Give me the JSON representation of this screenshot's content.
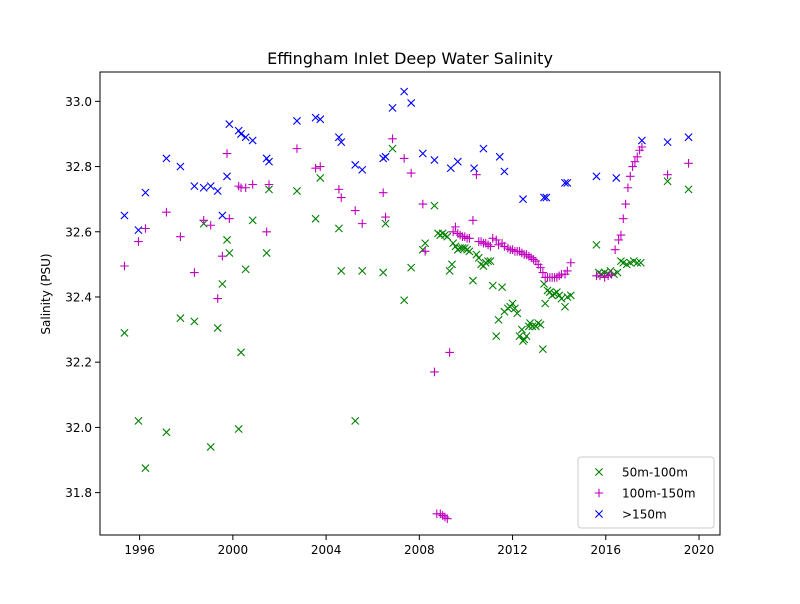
{
  "chart_data": {
    "type": "scatter",
    "title": "Effingham Inlet Deep Water Salinity",
    "xlabel": "",
    "ylabel": "Salinity (PSU)",
    "xlim": [
      1994.3,
      2020.9
    ],
    "ylim": [
      31.67,
      33.09
    ],
    "xticks": [
      1996,
      2000,
      2004,
      2008,
      2012,
      2016,
      2020
    ],
    "xtick_labels": [
      "1996",
      "2000",
      "2004",
      "2008",
      "2012",
      "2016",
      "2020"
    ],
    "yticks": [
      31.8,
      32.0,
      32.2,
      32.4,
      32.6,
      32.8,
      33.0
    ],
    "ytick_labels": [
      "31.8",
      "32.0",
      "32.2",
      "32.4",
      "32.6",
      "32.8",
      "33.0"
    ],
    "grid": false,
    "legend_position": "lower-right",
    "series": [
      {
        "name": "50m-100m",
        "marker": "x",
        "color": "#008000",
        "x": [
          1995.35,
          1995.95,
          1996.25,
          1997.15,
          1997.75,
          1998.35,
          1998.75,
          1999.05,
          1999.35,
          1999.55,
          1999.75,
          1999.85,
          2000.25,
          2000.35,
          2000.55,
          2000.85,
          2001.45,
          2001.55,
          2002.75,
          2003.55,
          2003.75,
          2004.55,
          2004.65,
          2005.25,
          2005.55,
          2006.45,
          2006.55,
          2006.85,
          2007.35,
          2007.65,
          2008.15,
          2008.25,
          2008.65,
          2008.8,
          2008.9,
          2009.0,
          2009.1,
          2009.2,
          2009.3,
          2009.4,
          2009.45,
          2009.55,
          2009.65,
          2009.75,
          2009.85,
          2009.95,
          2010.05,
          2010.15,
          2010.3,
          2010.45,
          2010.55,
          2010.65,
          2010.75,
          2010.85,
          2010.95,
          2011.05,
          2011.15,
          2011.3,
          2011.4,
          2011.55,
          2011.65,
          2011.8,
          2011.9,
          2012.0,
          2012.1,
          2012.2,
          2012.3,
          2012.4,
          2012.45,
          2012.5,
          2012.6,
          2012.7,
          2012.75,
          2012.85,
          2013.0,
          2013.1,
          2013.2,
          2013.3,
          2013.35,
          2013.4,
          2013.5,
          2013.6,
          2013.7,
          2013.8,
          2013.9,
          2014.0,
          2014.1,
          2014.25,
          2014.35,
          2014.5,
          2015.6,
          2015.7,
          2015.8,
          2015.95,
          2016.1,
          2016.2,
          2016.35,
          2016.5,
          2016.65,
          2016.75,
          2016.9,
          2017.05,
          2017.2,
          2017.35,
          2017.5,
          2018.65,
          2019.55
        ],
        "y": [
          32.29,
          32.02,
          31.875,
          31.985,
          32.335,
          32.325,
          32.625,
          31.94,
          32.305,
          32.44,
          32.575,
          32.535,
          31.995,
          32.23,
          32.485,
          32.635,
          32.535,
          32.73,
          32.725,
          32.64,
          32.765,
          32.61,
          32.48,
          32.02,
          32.48,
          32.475,
          32.625,
          32.855,
          32.39,
          32.49,
          32.545,
          32.565,
          32.68,
          32.595,
          32.59,
          32.595,
          32.59,
          32.585,
          32.48,
          32.5,
          32.565,
          32.555,
          32.545,
          32.55,
          32.55,
          32.55,
          32.545,
          32.54,
          32.45,
          32.53,
          32.52,
          32.5,
          32.495,
          32.505,
          32.51,
          32.51,
          32.435,
          32.28,
          32.33,
          32.43,
          32.355,
          32.365,
          32.37,
          32.38,
          32.365,
          32.35,
          32.28,
          32.3,
          32.265,
          32.27,
          32.28,
          32.31,
          32.32,
          32.31,
          32.31,
          32.32,
          32.315,
          32.24,
          32.44,
          32.38,
          32.42,
          32.415,
          32.405,
          32.41,
          32.415,
          32.405,
          32.395,
          32.37,
          32.4,
          32.405,
          32.56,
          32.475,
          32.47,
          32.475,
          32.47,
          32.48,
          32.47,
          32.475,
          32.51,
          32.505,
          32.5,
          32.505,
          32.51,
          32.505,
          32.505,
          32.755,
          32.73
        ]
      },
      {
        "name": "100m-150m",
        "marker": "+",
        "color": "#bf00bf",
        "x": [
          1995.35,
          1995.95,
          1996.25,
          1997.15,
          1997.75,
          1998.35,
          1998.75,
          1999.05,
          1999.35,
          1999.55,
          1999.75,
          1999.85,
          2000.25,
          2000.35,
          2000.55,
          2000.85,
          2001.45,
          2001.55,
          2002.75,
          2003.55,
          2003.75,
          2004.55,
          2004.65,
          2005.25,
          2005.55,
          2006.45,
          2006.55,
          2006.85,
          2007.35,
          2007.65,
          2008.15,
          2008.25,
          2008.65,
          2008.75,
          2008.9,
          2009.0,
          2009.1,
          2009.2,
          2009.3,
          2009.45,
          2009.55,
          2009.65,
          2009.75,
          2009.85,
          2009.95,
          2010.05,
          2010.15,
          2010.3,
          2010.45,
          2010.55,
          2010.65,
          2010.75,
          2010.85,
          2010.95,
          2011.05,
          2011.15,
          2011.3,
          2011.4,
          2011.55,
          2011.65,
          2011.8,
          2011.9,
          2012.0,
          2012.1,
          2012.2,
          2012.3,
          2012.4,
          2012.5,
          2012.6,
          2012.7,
          2012.8,
          2012.9,
          2013.0,
          2013.1,
          2013.2,
          2013.3,
          2013.4,
          2013.5,
          2013.6,
          2013.7,
          2013.8,
          2013.9,
          2014.0,
          2014.1,
          2014.25,
          2014.35,
          2014.5,
          2015.6,
          2015.75,
          2015.95,
          2016.1,
          2016.25,
          2016.4,
          2016.55,
          2016.65,
          2016.75,
          2016.85,
          2016.95,
          2017.05,
          2017.15,
          2017.25,
          2017.35,
          2017.45,
          2017.55,
          2018.65,
          2019.55
        ],
        "y": [
          32.495,
          32.57,
          32.61,
          32.66,
          32.585,
          32.475,
          32.635,
          32.62,
          32.395,
          32.525,
          32.84,
          32.64,
          32.74,
          32.735,
          32.735,
          32.745,
          32.6,
          32.745,
          32.855,
          32.795,
          32.8,
          32.73,
          32.705,
          32.665,
          32.625,
          32.72,
          32.645,
          32.885,
          32.825,
          32.78,
          32.685,
          32.54,
          32.17,
          31.735,
          31.735,
          31.73,
          31.725,
          31.72,
          32.23,
          32.6,
          32.615,
          32.595,
          32.59,
          32.585,
          32.585,
          32.58,
          32.58,
          32.635,
          32.775,
          32.57,
          32.57,
          32.565,
          32.565,
          32.56,
          32.555,
          32.58,
          32.575,
          32.56,
          32.565,
          32.555,
          32.55,
          32.545,
          32.545,
          32.54,
          32.54,
          32.54,
          32.535,
          32.53,
          32.53,
          32.525,
          32.52,
          32.515,
          32.51,
          32.5,
          32.49,
          32.475,
          32.46,
          32.46,
          32.46,
          32.46,
          32.46,
          32.46,
          32.465,
          32.47,
          32.47,
          32.48,
          32.505,
          32.465,
          32.465,
          32.46,
          32.465,
          32.47,
          32.545,
          32.575,
          32.59,
          32.64,
          32.685,
          32.735,
          32.77,
          32.8,
          32.815,
          32.83,
          32.85,
          32.86,
          32.775,
          32.81
        ]
      },
      {
        "name": ">150m",
        "marker": "x",
        "color": "#0000ff",
        "x": [
          1995.35,
          1995.95,
          1996.25,
          1997.15,
          1997.75,
          1998.35,
          1998.75,
          1999.05,
          1999.35,
          1999.55,
          1999.75,
          1999.85,
          2000.25,
          2000.35,
          2000.55,
          2000.85,
          2001.45,
          2001.55,
          2002.75,
          2003.55,
          2003.75,
          2004.55,
          2004.65,
          2005.25,
          2005.55,
          2006.45,
          2006.55,
          2006.85,
          2007.35,
          2007.65,
          2008.15,
          2008.65,
          2009.35,
          2009.65,
          2010.35,
          2010.75,
          2011.45,
          2011.65,
          2012.45,
          2013.35,
          2013.45,
          2014.25,
          2014.35,
          2015.6,
          2016.45,
          2017.55,
          2018.65,
          2019.55
        ],
        "y": [
          32.65,
          32.605,
          32.72,
          32.825,
          32.8,
          32.74,
          32.735,
          32.74,
          32.725,
          32.65,
          32.77,
          32.93,
          32.91,
          32.9,
          32.89,
          32.88,
          32.825,
          32.815,
          32.94,
          32.95,
          32.945,
          32.89,
          32.875,
          32.805,
          32.79,
          32.825,
          32.83,
          32.98,
          33.03,
          32.995,
          32.84,
          32.82,
          32.795,
          32.815,
          32.795,
          32.855,
          32.83,
          32.785,
          32.7,
          32.705,
          32.705,
          32.75,
          32.75,
          32.77,
          32.765,
          32.88,
          32.875,
          32.89
        ]
      }
    ]
  }
}
